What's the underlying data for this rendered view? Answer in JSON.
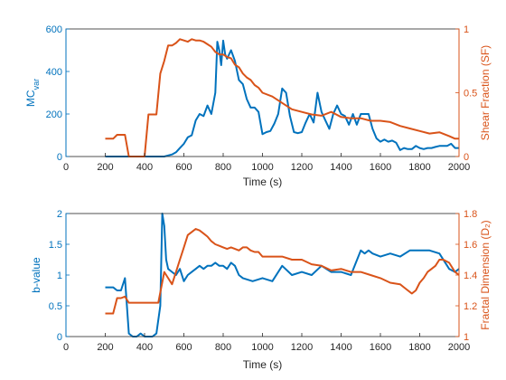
{
  "chart_data": [
    {
      "type": "line",
      "xlabel": "Time (s)",
      "ylabel_left": {
        "base": "MC",
        "sub": "var"
      },
      "ylabel_right": "Shear Fraction (SF)",
      "xlim": [
        0,
        2000
      ],
      "ylim_left": [
        0,
        600
      ],
      "ylim_right": [
        0,
        1
      ],
      "xticks": [
        "0",
        "200",
        "400",
        "600",
        "800",
        "1000",
        "1200",
        "1400",
        "1600",
        "1800",
        "2000"
      ],
      "yticks_left": [
        "0",
        "200",
        "400",
        "600"
      ],
      "yticks_right": [
        "0",
        "0.5",
        "1"
      ],
      "left_color": "#0072BD",
      "right_color": "#D95319",
      "series_left": {
        "x": [
          200,
          260,
          300,
          320,
          340,
          400,
          460,
          500,
          520,
          540,
          560,
          580,
          600,
          620,
          640,
          660,
          680,
          700,
          720,
          740,
          760,
          770,
          780,
          790,
          800,
          810,
          820,
          840,
          860,
          880,
          900,
          920,
          940,
          960,
          980,
          1000,
          1020,
          1040,
          1060,
          1080,
          1100,
          1120,
          1140,
          1160,
          1180,
          1200,
          1220,
          1240,
          1260,
          1280,
          1300,
          1320,
          1340,
          1360,
          1380,
          1400,
          1420,
          1440,
          1460,
          1480,
          1500,
          1520,
          1540,
          1560,
          1580,
          1600,
          1620,
          1640,
          1660,
          1680,
          1700,
          1720,
          1740,
          1760,
          1780,
          1800,
          1820,
          1840,
          1860,
          1880,
          1900,
          1920,
          1940,
          1960,
          1980,
          2000
        ],
        "y": [
          0,
          0,
          0,
          0,
          0,
          0,
          0,
          0,
          5,
          10,
          20,
          40,
          60,
          90,
          100,
          170,
          200,
          190,
          240,
          200,
          300,
          540,
          500,
          430,
          545,
          480,
          460,
          500,
          450,
          360,
          340,
          270,
          230,
          230,
          210,
          105,
          115,
          120,
          155,
          200,
          320,
          300,
          190,
          115,
          110,
          115,
          160,
          200,
          160,
          300,
          210,
          170,
          130,
          200,
          240,
          200,
          190,
          150,
          200,
          150,
          200,
          200,
          200,
          130,
          85,
          70,
          80,
          70,
          75,
          65,
          30,
          40,
          35,
          35,
          50,
          40,
          35,
          40,
          40,
          45,
          50,
          50,
          50,
          60,
          40,
          40
        ]
      },
      "series_right": {
        "x": [
          200,
          240,
          260,
          300,
          320,
          380,
          400,
          420,
          440,
          460,
          480,
          500,
          520,
          540,
          560,
          580,
          600,
          620,
          640,
          660,
          680,
          700,
          720,
          740,
          760,
          780,
          800,
          820,
          840,
          860,
          880,
          900,
          920,
          940,
          960,
          980,
          1000,
          1050,
          1100,
          1150,
          1200,
          1250,
          1300,
          1350,
          1400,
          1450,
          1500,
          1550,
          1600,
          1650,
          1700,
          1750,
          1800,
          1850,
          1900,
          1950,
          1980,
          2000
        ],
        "y": [
          0.14,
          0.14,
          0.17,
          0.17,
          0.0,
          0.0,
          0.0,
          0.33,
          0.33,
          0.33,
          0.65,
          0.75,
          0.87,
          0.87,
          0.89,
          0.92,
          0.91,
          0.9,
          0.92,
          0.91,
          0.91,
          0.9,
          0.88,
          0.86,
          0.82,
          0.8,
          0.8,
          0.78,
          0.77,
          0.72,
          0.7,
          0.65,
          0.62,
          0.6,
          0.56,
          0.54,
          0.5,
          0.47,
          0.42,
          0.37,
          0.35,
          0.33,
          0.32,
          0.35,
          0.31,
          0.3,
          0.3,
          0.28,
          0.28,
          0.27,
          0.24,
          0.22,
          0.2,
          0.18,
          0.19,
          0.16,
          0.14,
          0.14
        ]
      }
    },
    {
      "type": "line",
      "xlabel": "Time (s)",
      "ylabel_left": {
        "base": "b-value",
        "sub": ""
      },
      "ylabel_right": "Fractal Dimension (D₂)",
      "xlim": [
        0,
        2000
      ],
      "ylim_left": [
        0,
        2
      ],
      "ylim_right": [
        1,
        1.8
      ],
      "xticks": [
        "0",
        "200",
        "400",
        "600",
        "800",
        "1000",
        "1200",
        "1400",
        "1600",
        "1800",
        "2000"
      ],
      "yticks_left": [
        "0",
        "0.5",
        "1",
        "1.5",
        "2"
      ],
      "yticks_right": [
        "1",
        "1.2",
        "1.4",
        "1.6",
        "1.8"
      ],
      "left_color": "#0072BD",
      "right_color": "#D95319",
      "series_left": {
        "x": [
          200,
          240,
          260,
          280,
          300,
          320,
          340,
          360,
          380,
          400,
          420,
          440,
          460,
          480,
          490,
          500,
          510,
          520,
          540,
          560,
          580,
          600,
          620,
          640,
          660,
          680,
          700,
          720,
          740,
          760,
          780,
          800,
          820,
          840,
          860,
          880,
          900,
          950,
          1000,
          1050,
          1100,
          1150,
          1200,
          1250,
          1300,
          1350,
          1400,
          1450,
          1500,
          1520,
          1540,
          1560,
          1600,
          1650,
          1700,
          1750,
          1800,
          1850,
          1900,
          1950,
          1980,
          2000
        ],
        "y": [
          0.8,
          0.8,
          0.75,
          0.75,
          0.95,
          0.05,
          0.0,
          0.0,
          0.05,
          0.0,
          0.0,
          0.0,
          0.05,
          0.5,
          2.1,
          1.8,
          1.25,
          1.1,
          1.05,
          1.0,
          1.1,
          0.9,
          1.0,
          1.05,
          1.1,
          1.15,
          1.1,
          1.15,
          1.15,
          1.2,
          1.15,
          1.15,
          1.1,
          1.2,
          1.15,
          1.0,
          0.95,
          0.9,
          0.95,
          0.9,
          1.15,
          1.0,
          1.05,
          1.0,
          1.15,
          1.05,
          1.05,
          1.0,
          1.4,
          1.35,
          1.4,
          1.35,
          1.3,
          1.35,
          1.3,
          1.4,
          1.4,
          1.4,
          1.35,
          1.1,
          1.05,
          1.1
        ]
      },
      "series_right": {
        "x": [
          200,
          240,
          260,
          280,
          300,
          320,
          360,
          400,
          440,
          470,
          500,
          520,
          540,
          560,
          580,
          600,
          620,
          640,
          660,
          680,
          700,
          720,
          740,
          760,
          780,
          800,
          820,
          840,
          860,
          880,
          900,
          920,
          940,
          960,
          980,
          1000,
          1050,
          1100,
          1150,
          1200,
          1250,
          1300,
          1350,
          1400,
          1450,
          1500,
          1550,
          1600,
          1650,
          1700,
          1720,
          1740,
          1760,
          1780,
          1800,
          1820,
          1840,
          1860,
          1880,
          1900,
          1920,
          1950,
          1980,
          2000
        ],
        "y": [
          1.15,
          1.15,
          1.25,
          1.25,
          1.26,
          1.22,
          1.22,
          1.22,
          1.22,
          1.22,
          1.42,
          1.38,
          1.34,
          1.42,
          1.5,
          1.58,
          1.66,
          1.68,
          1.7,
          1.69,
          1.67,
          1.65,
          1.62,
          1.6,
          1.59,
          1.58,
          1.57,
          1.58,
          1.57,
          1.56,
          1.58,
          1.58,
          1.56,
          1.55,
          1.55,
          1.52,
          1.52,
          1.52,
          1.5,
          1.5,
          1.47,
          1.46,
          1.43,
          1.44,
          1.42,
          1.42,
          1.4,
          1.38,
          1.35,
          1.34,
          1.32,
          1.3,
          1.28,
          1.3,
          1.35,
          1.38,
          1.42,
          1.44,
          1.46,
          1.5,
          1.5,
          1.48,
          1.42,
          1.4
        ]
      }
    }
  ]
}
